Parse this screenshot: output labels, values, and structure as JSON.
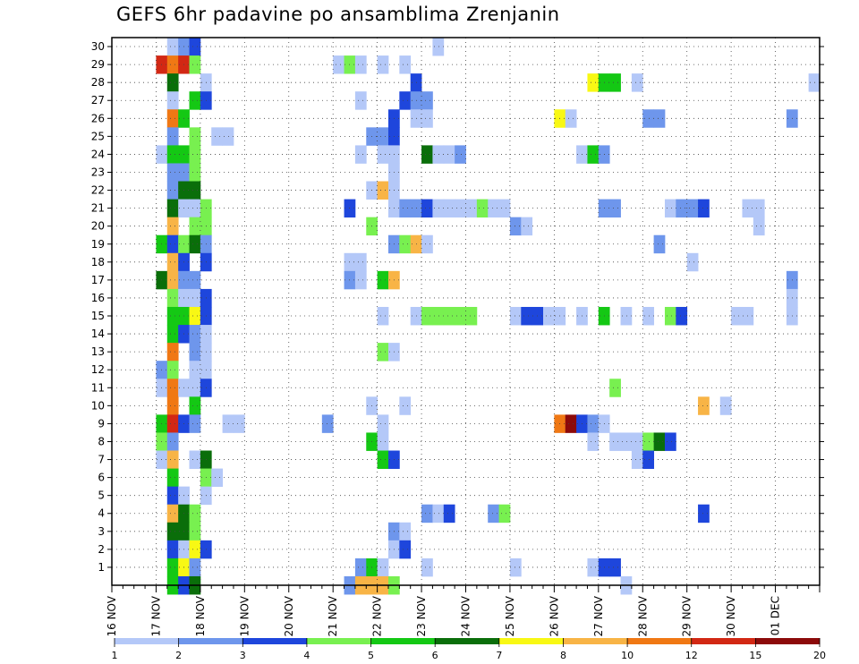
{
  "chart_data": {
    "type": "heatmap",
    "title": "GEFS 6hr padavine po ansamblima Zrenjanin",
    "x_tick_labels": [
      "16 NOV",
      "17 NOV",
      "18 NOV",
      "19 NOV",
      "20 NOV",
      "21 NOV",
      "22 NOV",
      "23 NOV",
      "24 NOV",
      "25 NOV",
      "26 NOV",
      "27 NOV",
      "28 NOV",
      "29 NOV",
      "30 NOV",
      "01 DEC"
    ],
    "x_range_days": [
      16,
      32
    ],
    "y_tick_labels": [
      "1",
      "2",
      "3",
      "4",
      "5",
      "6",
      "7",
      "8",
      "9",
      "10",
      "11",
      "12",
      "13",
      "14",
      "15",
      "16",
      "17",
      "18",
      "19",
      "20",
      "21",
      "22",
      "23",
      "24",
      "25",
      "26",
      "27",
      "28",
      "29",
      "30"
    ],
    "y_range": [
      0,
      30.5
    ],
    "grid": true,
    "colorbar": {
      "labels": [
        "1",
        "2",
        "3",
        "4",
        "5",
        "6",
        "7",
        "8",
        "10",
        "12",
        "15",
        "20"
      ],
      "colors": [
        "#b4c8f8",
        "#6e96ec",
        "#1e46dc",
        "#78f050",
        "#14c814",
        "#0a6e0a",
        "#f8f814",
        "#f8b446",
        "#f07814",
        "#d22814",
        "#8c0a0a"
      ]
    },
    "cells": [
      [
        17.25,
        30,
        0
      ],
      [
        17.5,
        30,
        1
      ],
      [
        17.75,
        30,
        2
      ],
      [
        23.25,
        30,
        0
      ],
      [
        17,
        29,
        9
      ],
      [
        17.25,
        29,
        8
      ],
      [
        17.5,
        29,
        9
      ],
      [
        17.75,
        29,
        3
      ],
      [
        21,
        29,
        0
      ],
      [
        21.25,
        29,
        3
      ],
      [
        21.5,
        29,
        0
      ],
      [
        22,
        29,
        0
      ],
      [
        22.5,
        29,
        0
      ],
      [
        17.25,
        28,
        5
      ],
      [
        18,
        28,
        0
      ],
      [
        22.75,
        28,
        2
      ],
      [
        26.75,
        28,
        6
      ],
      [
        27,
        28,
        4
      ],
      [
        27.25,
        28,
        4
      ],
      [
        27.75,
        28,
        0
      ],
      [
        31.75,
        28,
        0
      ],
      [
        17.25,
        27,
        0
      ],
      [
        17.75,
        27,
        4
      ],
      [
        18,
        27,
        2
      ],
      [
        21.5,
        27,
        0
      ],
      [
        22.5,
        27,
        2
      ],
      [
        22.75,
        27,
        1
      ],
      [
        23,
        27,
        1
      ],
      [
        17.25,
        26,
        8
      ],
      [
        17.5,
        26,
        4
      ],
      [
        22.25,
        26,
        2
      ],
      [
        22.75,
        26,
        0
      ],
      [
        23,
        26,
        0
      ],
      [
        26,
        26,
        6
      ],
      [
        26.25,
        26,
        0
      ],
      [
        28,
        26,
        1
      ],
      [
        28.25,
        26,
        1
      ],
      [
        31.25,
        26,
        1
      ],
      [
        17.25,
        25,
        1
      ],
      [
        17.75,
        25,
        3
      ],
      [
        18.25,
        25,
        0
      ],
      [
        18.5,
        25,
        0
      ],
      [
        21.75,
        25,
        1
      ],
      [
        22,
        25,
        1
      ],
      [
        22.25,
        25,
        2
      ],
      [
        17,
        24,
        0
      ],
      [
        17.25,
        24,
        4
      ],
      [
        17.5,
        24,
        4
      ],
      [
        17.75,
        24,
        3
      ],
      [
        21.5,
        24,
        0
      ],
      [
        22,
        24,
        0
      ],
      [
        22.25,
        24,
        0
      ],
      [
        23,
        24,
        5
      ],
      [
        23.25,
        24,
        0
      ],
      [
        23.5,
        24,
        0
      ],
      [
        23.75,
        24,
        1
      ],
      [
        26.5,
        24,
        0
      ],
      [
        26.75,
        24,
        4
      ],
      [
        27,
        24,
        1
      ],
      [
        17.25,
        23,
        1
      ],
      [
        17.5,
        23,
        1
      ],
      [
        17.75,
        23,
        3
      ],
      [
        22.25,
        23,
        0
      ],
      [
        17.25,
        22,
        1
      ],
      [
        17.5,
        22,
        5
      ],
      [
        17.75,
        22,
        5
      ],
      [
        21.75,
        22,
        0
      ],
      [
        22,
        22,
        7
      ],
      [
        22.25,
        22,
        0
      ],
      [
        17.25,
        21,
        5
      ],
      [
        17.5,
        21,
        0
      ],
      [
        17.75,
        21,
        0
      ],
      [
        18,
        21,
        3
      ],
      [
        21.25,
        21,
        2
      ],
      [
        22.25,
        21,
        0
      ],
      [
        22.5,
        21,
        1
      ],
      [
        22.75,
        21,
        1
      ],
      [
        23,
        21,
        2
      ],
      [
        23.25,
        21,
        0
      ],
      [
        23.5,
        21,
        0
      ],
      [
        23.75,
        21,
        0
      ],
      [
        24,
        21,
        0
      ],
      [
        24.25,
        21,
        3
      ],
      [
        24.5,
        21,
        0
      ],
      [
        24.75,
        21,
        0
      ],
      [
        27,
        21,
        1
      ],
      [
        27.25,
        21,
        1
      ],
      [
        28.5,
        21,
        0
      ],
      [
        28.75,
        21,
        1
      ],
      [
        29,
        21,
        1
      ],
      [
        29.25,
        21,
        2
      ],
      [
        30.25,
        21,
        0
      ],
      [
        30.5,
        21,
        0
      ],
      [
        17.25,
        20,
        7
      ],
      [
        17.75,
        20,
        3
      ],
      [
        18,
        20,
        3
      ],
      [
        21.75,
        20,
        3
      ],
      [
        25,
        20,
        1
      ],
      [
        25.25,
        20,
        0
      ],
      [
        30.5,
        20,
        0
      ],
      [
        17,
        19,
        4
      ],
      [
        17.25,
        19,
        2
      ],
      [
        17.5,
        19,
        3
      ],
      [
        17.75,
        19,
        5
      ],
      [
        18,
        19,
        1
      ],
      [
        22.25,
        19,
        1
      ],
      [
        22.5,
        19,
        3
      ],
      [
        22.75,
        19,
        7
      ],
      [
        23,
        19,
        0
      ],
      [
        28.25,
        19,
        1
      ],
      [
        17.25,
        18,
        7
      ],
      [
        17.5,
        18,
        2
      ],
      [
        18,
        18,
        2
      ],
      [
        21.25,
        18,
        0
      ],
      [
        21.5,
        18,
        0
      ],
      [
        29,
        18,
        0
      ],
      [
        17,
        17,
        5
      ],
      [
        17.25,
        17,
        7
      ],
      [
        17.5,
        17,
        1
      ],
      [
        17.75,
        17,
        1
      ],
      [
        21.25,
        17,
        1
      ],
      [
        21.5,
        17,
        0
      ],
      [
        22,
        17,
        4
      ],
      [
        22.25,
        17,
        7
      ],
      [
        31.25,
        17,
        1
      ],
      [
        17.25,
        16,
        3
      ],
      [
        17.5,
        16,
        0
      ],
      [
        17.75,
        16,
        0
      ],
      [
        18,
        16,
        2
      ],
      [
        31.25,
        16,
        0
      ],
      [
        17.25,
        15,
        4
      ],
      [
        17.5,
        15,
        4
      ],
      [
        17.75,
        15,
        6
      ],
      [
        18,
        15,
        2
      ],
      [
        22,
        15,
        0
      ],
      [
        22.75,
        15,
        0
      ],
      [
        23,
        15,
        3
      ],
      [
        23.25,
        15,
        3
      ],
      [
        23.5,
        15,
        3
      ],
      [
        23.75,
        15,
        3
      ],
      [
        24,
        15,
        3
      ],
      [
        25,
        15,
        0
      ],
      [
        25.25,
        15,
        2
      ],
      [
        25.5,
        15,
        2
      ],
      [
        25.75,
        15,
        0
      ],
      [
        26,
        15,
        0
      ],
      [
        26.5,
        15,
        0
      ],
      [
        27,
        15,
        4
      ],
      [
        27.5,
        15,
        0
      ],
      [
        28,
        15,
        0
      ],
      [
        28.5,
        15,
        3
      ],
      [
        28.75,
        15,
        2
      ],
      [
        30,
        15,
        0
      ],
      [
        30.25,
        15,
        0
      ],
      [
        31.25,
        15,
        0
      ],
      [
        17.25,
        14,
        4
      ],
      [
        17.5,
        14,
        2
      ],
      [
        17.75,
        14,
        1
      ],
      [
        18,
        14,
        0
      ],
      [
        17.25,
        13,
        8
      ],
      [
        17.75,
        13,
        1
      ],
      [
        18,
        13,
        0
      ],
      [
        22,
        13,
        3
      ],
      [
        22.25,
        13,
        0
      ],
      [
        17,
        12,
        1
      ],
      [
        17.25,
        12,
        3
      ],
      [
        17.75,
        12,
        0
      ],
      [
        18,
        12,
        0
      ],
      [
        17,
        11,
        0
      ],
      [
        17.25,
        11,
        8
      ],
      [
        17.5,
        11,
        0
      ],
      [
        17.75,
        11,
        0
      ],
      [
        18,
        11,
        2
      ],
      [
        27.25,
        11,
        3
      ],
      [
        17.25,
        10,
        8
      ],
      [
        17.75,
        10,
        4
      ],
      [
        21.75,
        10,
        0
      ],
      [
        22.5,
        10,
        0
      ],
      [
        29.25,
        10,
        7
      ],
      [
        29.75,
        10,
        0
      ],
      [
        17,
        9,
        4
      ],
      [
        17.25,
        9,
        9
      ],
      [
        17.5,
        9,
        2
      ],
      [
        17.75,
        9,
        1
      ],
      [
        18.5,
        9,
        0
      ],
      [
        18.75,
        9,
        0
      ],
      [
        20.75,
        9,
        1
      ],
      [
        22,
        9,
        0
      ],
      [
        26,
        9,
        8
      ],
      [
        26.25,
        9,
        10
      ],
      [
        26.5,
        9,
        2
      ],
      [
        26.75,
        9,
        1
      ],
      [
        27,
        9,
        0
      ],
      [
        17,
        8,
        3
      ],
      [
        17.25,
        8,
        1
      ],
      [
        21.75,
        8,
        4
      ],
      [
        22,
        8,
        0
      ],
      [
        26.75,
        8,
        0
      ],
      [
        27.25,
        8,
        0
      ],
      [
        27.5,
        8,
        0
      ],
      [
        27.75,
        8,
        0
      ],
      [
        28,
        8,
        3
      ],
      [
        28.25,
        8,
        5
      ],
      [
        28.5,
        8,
        2
      ],
      [
        17,
        7,
        0
      ],
      [
        17.25,
        7,
        7
      ],
      [
        17.75,
        7,
        0
      ],
      [
        18,
        7,
        5
      ],
      [
        22,
        7,
        4
      ],
      [
        22.25,
        7,
        2
      ],
      [
        27.75,
        7,
        0
      ],
      [
        28,
        7,
        2
      ],
      [
        17.25,
        6,
        4
      ],
      [
        18,
        6,
        3
      ],
      [
        18.25,
        6,
        0
      ],
      [
        17.25,
        5,
        2
      ],
      [
        17.5,
        5,
        0
      ],
      [
        18,
        5,
        0
      ],
      [
        17.25,
        4,
        7
      ],
      [
        17.5,
        4,
        5
      ],
      [
        17.75,
        4,
        3
      ],
      [
        23,
        4,
        1
      ],
      [
        23.25,
        4,
        0
      ],
      [
        23.5,
        4,
        2
      ],
      [
        24.5,
        4,
        1
      ],
      [
        24.75,
        4,
        3
      ],
      [
        29.25,
        4,
        2
      ],
      [
        17.25,
        3,
        5
      ],
      [
        17.5,
        3,
        5
      ],
      [
        17.75,
        3,
        3
      ],
      [
        22.25,
        3,
        1
      ],
      [
        22.5,
        3,
        0
      ],
      [
        17.25,
        2,
        2
      ],
      [
        17.5,
        2,
        0
      ],
      [
        17.75,
        2,
        6
      ],
      [
        18,
        2,
        2
      ],
      [
        22.25,
        2,
        0
      ],
      [
        22.5,
        2,
        2
      ],
      [
        17.25,
        1,
        4
      ],
      [
        17.5,
        1,
        6
      ],
      [
        17.75,
        1,
        1
      ],
      [
        21.5,
        1,
        1
      ],
      [
        21.75,
        1,
        4
      ],
      [
        22,
        1,
        0
      ],
      [
        23,
        1,
        0
      ],
      [
        25,
        1,
        0
      ],
      [
        26.75,
        1,
        0
      ],
      [
        27,
        1,
        2
      ],
      [
        27.25,
        1,
        2
      ],
      [
        17.25,
        0,
        4
      ],
      [
        17.5,
        0,
        2
      ],
      [
        17.75,
        0,
        5
      ],
      [
        21.25,
        0,
        1
      ],
      [
        21.5,
        0,
        7
      ],
      [
        21.75,
        0,
        7
      ],
      [
        22,
        0,
        7
      ],
      [
        22.25,
        0,
        3
      ],
      [
        27.5,
        0,
        0
      ]
    ]
  }
}
